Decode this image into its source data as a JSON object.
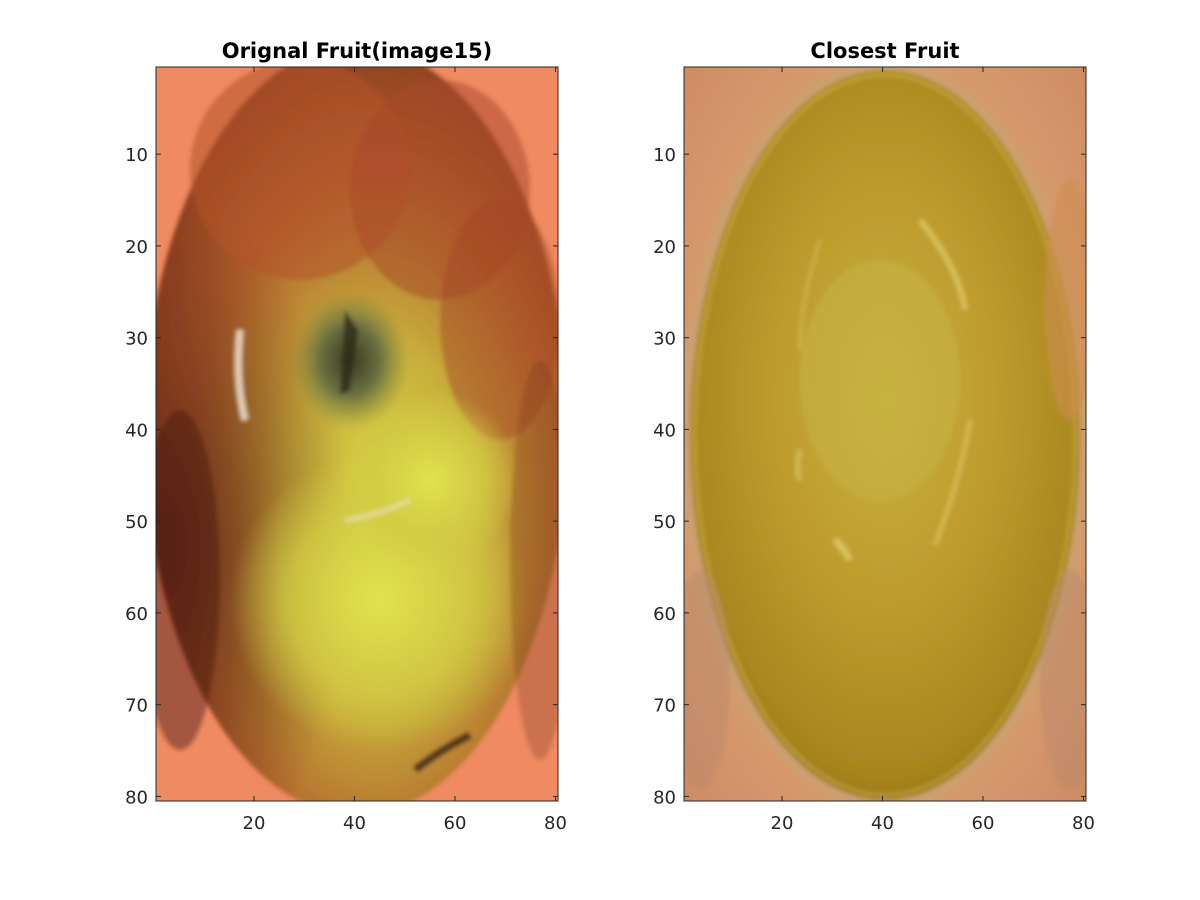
{
  "figure": {
    "background": "#ffffff",
    "axes_color": "#262626"
  },
  "chart_data": [
    {
      "type": "image",
      "title": "Orignal Fruit(image15)",
      "xlabel": "",
      "ylabel": "",
      "xlim": [
        0.5,
        80.5
      ],
      "ylim": [
        0.5,
        80.5
      ],
      "y_reversed": true,
      "xticks": [
        20,
        40,
        60,
        80
      ],
      "yticks": [
        10,
        20,
        30,
        40,
        50,
        60,
        70,
        80
      ],
      "grid": false,
      "colors": {
        "background": "#f08a62",
        "apple_red": "#b0482a",
        "apple_dark": "#6e2a18",
        "apple_yellow": "#d8d846",
        "apple_green_stem": "#5c6a38",
        "highlight": "#f3e6d0"
      }
    },
    {
      "type": "image",
      "title": "Closest Fruit",
      "xlabel": "",
      "ylabel": "",
      "xlim": [
        0.5,
        80.5
      ],
      "ylim": [
        0.5,
        80.5
      ],
      "y_reversed": true,
      "xticks": [
        20,
        40,
        60,
        80
      ],
      "yticks": [
        10,
        20,
        30,
        40,
        50,
        60,
        70,
        80
      ],
      "grid": false,
      "colors": {
        "background": "#d9976e",
        "fruit_main": "#bf9a2a",
        "fruit_edge": "#9c7e22",
        "fruit_center": "#c9ad3c",
        "highlight": "#e0cc6a"
      }
    }
  ]
}
